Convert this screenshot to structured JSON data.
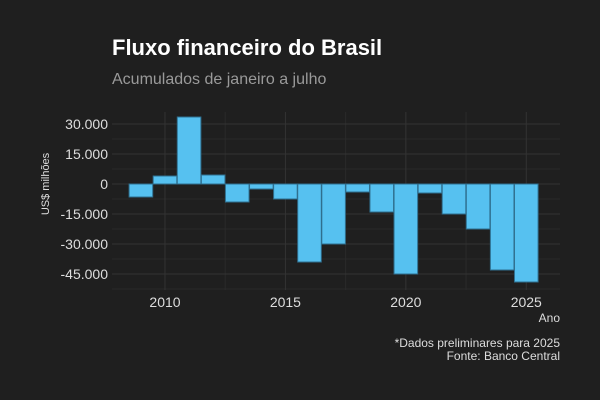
{
  "chart_data": {
    "type": "bar",
    "title": "Fluxo financeiro do Brasil",
    "subtitle": "Acumulados de janeiro a julho",
    "xlabel": "Ano",
    "ylabel": "US$ milhões",
    "categories": [
      2009,
      2010,
      2011,
      2012,
      2013,
      2014,
      2015,
      2016,
      2017,
      2018,
      2019,
      2020,
      2021,
      2022,
      2023,
      2024,
      2025
    ],
    "values": [
      -6500,
      4000,
      33500,
      4500,
      -9000,
      -2500,
      -7500,
      -39000,
      -30000,
      -4000,
      -14000,
      -45000,
      -4500,
      -15000,
      -22500,
      -43000,
      -49000
    ],
    "xticks": [
      "2010",
      "2015",
      "2020",
      "2025"
    ],
    "yticks": [
      "30.000",
      "15.000",
      "0",
      "-15.000",
      "-30.000",
      "-45.000"
    ],
    "ylim": [
      -53000,
      36000
    ],
    "xlim": [
      2007.8,
      2026.4
    ],
    "grid": true,
    "bar_color": "#56c1f0",
    "captions": [
      "*Dados preliminares para 2025",
      "Fonte: Banco Central"
    ]
  }
}
